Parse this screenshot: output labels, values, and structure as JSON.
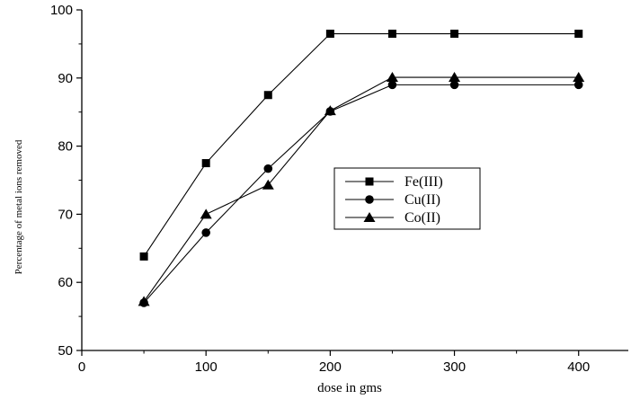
{
  "chart_data": {
    "type": "line",
    "xlabel": "dose in gms",
    "ylabel": "Percentage of metal ions removed",
    "xlim": [
      0,
      440
    ],
    "ylim": [
      50,
      100
    ],
    "xticks": [
      0,
      100,
      200,
      300,
      400
    ],
    "yticks": [
      50,
      60,
      70,
      80,
      90,
      100
    ],
    "x_tick_labels": [
      "0",
      "100",
      "200",
      "300",
      "400"
    ],
    "y_tick_labels": [
      "50",
      "60",
      "70",
      "80",
      "90",
      "100"
    ],
    "legend_position": "center-right",
    "series": [
      {
        "name": "Fe(III)",
        "marker": "square",
        "x": [
          50,
          100,
          150,
          200,
          250,
          300,
          400
        ],
        "y": [
          63.8,
          77.5,
          87.5,
          96.5,
          96.5,
          96.5,
          96.5
        ]
      },
      {
        "name": "Cu(II)",
        "marker": "circle",
        "x": [
          50,
          100,
          150,
          200,
          250,
          300,
          400
        ],
        "y": [
          57.0,
          67.3,
          76.7,
          85.1,
          89.0,
          89.0,
          89.0
        ]
      },
      {
        "name": "Co(II)",
        "marker": "triangle",
        "x": [
          50,
          100,
          150,
          200,
          250,
          300,
          400
        ],
        "y": [
          57.2,
          70.0,
          74.3,
          85.2,
          90.1,
          90.1,
          90.1
        ]
      }
    ]
  }
}
